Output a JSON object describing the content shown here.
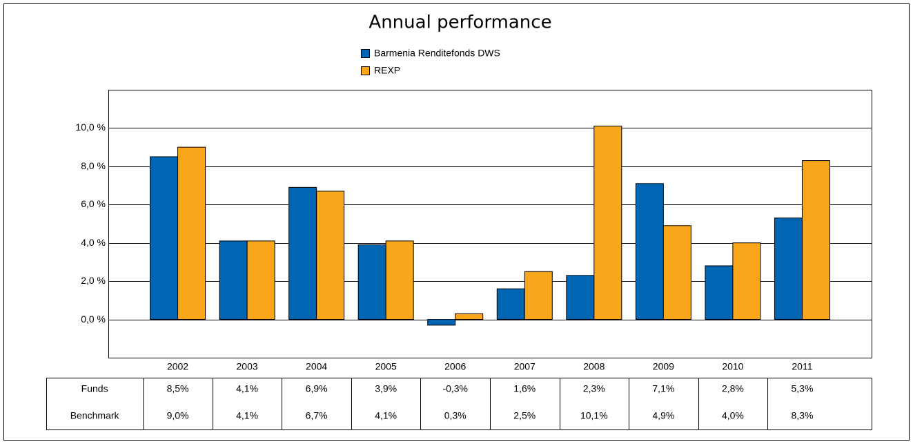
{
  "chart_data": {
    "type": "bar",
    "title": "Annual performance",
    "categories": [
      "2002",
      "2003",
      "2004",
      "2005",
      "2006",
      "2007",
      "2008",
      "2009",
      "2010",
      "2011"
    ],
    "series": [
      {
        "name": "Barmenia Renditefonds DWS",
        "color": "#0066b3",
        "values": [
          8.5,
          4.1,
          6.9,
          3.9,
          -0.3,
          1.6,
          2.3,
          7.1,
          2.8,
          5.3
        ],
        "value_labels": [
          "8,5%",
          "4,1%",
          "6,9%",
          "3,9%",
          "-0,3%",
          "1,6%",
          "2,3%",
          "7,1%",
          "2,8%",
          "5,3%"
        ]
      },
      {
        "name": "REXP",
        "color": "#f9a61a",
        "values": [
          9.0,
          4.1,
          6.7,
          4.1,
          0.3,
          2.5,
          10.1,
          4.9,
          4.0,
          8.3
        ],
        "value_labels": [
          "9,0%",
          "4,1%",
          "6,7%",
          "4,1%",
          "0,3%",
          "2,5%",
          "10,1%",
          "4,9%",
          "4,0%",
          "8,3%"
        ]
      }
    ],
    "table_rows": [
      "Funds",
      "Benchmark"
    ],
    "ylim": [
      -2,
      12
    ],
    "yticks": [
      {
        "value": 0,
        "label": "0,0 %"
      },
      {
        "value": 2,
        "label": "2,0 %"
      },
      {
        "value": 4,
        "label": "4,0 %"
      },
      {
        "value": 6,
        "label": "6,0 %"
      },
      {
        "value": 8,
        "label": "8,0 %"
      },
      {
        "value": 10,
        "label": "10,0 %"
      }
    ],
    "grid": true
  }
}
